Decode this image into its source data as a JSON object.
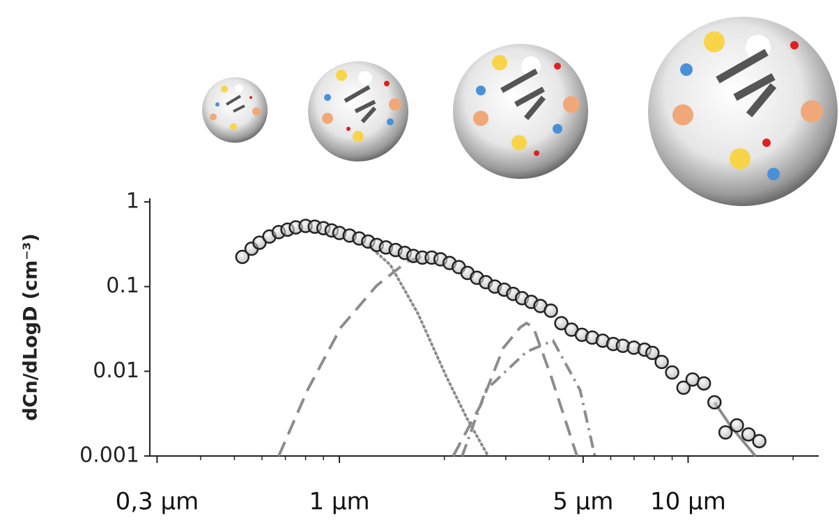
{
  "chart_data": {
    "type": "scatter",
    "y_label": "dCn/dLogD (cm⁻³)",
    "xscale": "log",
    "yscale": "log",
    "xlim": [
      0.286,
      23.7
    ],
    "ylim": [
      0.001,
      1
    ],
    "xticks": [
      {
        "value": 0.3,
        "label": "0,3 µm"
      },
      {
        "value": 1,
        "label": "1 µm"
      },
      {
        "value": 5,
        "label": "5 µm"
      },
      {
        "value": 10,
        "label": "10 µm"
      }
    ],
    "xminorticks": [
      0.4,
      0.5,
      0.6,
      0.7,
      0.8,
      0.9,
      2,
      3,
      4,
      6,
      7,
      8,
      9,
      20
    ],
    "yticks": [
      1,
      0.1,
      0.01,
      0.001
    ],
    "marker_color": "#222222",
    "x": [
      0.527,
      0.56,
      0.59,
      0.63,
      0.67,
      0.71,
      0.75,
      0.8,
      0.85,
      0.9,
      0.95,
      1.0,
      1.07,
      1.14,
      1.21,
      1.28,
      1.36,
      1.45,
      1.54,
      1.63,
      1.73,
      1.84,
      1.95,
      2.07,
      2.2,
      2.33,
      2.48,
      2.63,
      2.79,
      2.97,
      3.15,
      3.34,
      3.55,
      3.77,
      4.04,
      4.33,
      4.63,
      4.96,
      5.31,
      5.69,
      6.1,
      6.5,
      6.99,
      7.5,
      7.9,
      8.4,
      9.0,
      9.7,
      10.3,
      11.1,
      11.9,
      12.8,
      13.8,
      14.9,
      16.0
    ],
    "values": [
      0.224,
      0.28,
      0.33,
      0.39,
      0.44,
      0.47,
      0.5,
      0.52,
      0.51,
      0.49,
      0.46,
      0.43,
      0.4,
      0.37,
      0.34,
      0.31,
      0.29,
      0.27,
      0.25,
      0.23,
      0.22,
      0.22,
      0.21,
      0.19,
      0.17,
      0.145,
      0.127,
      0.113,
      0.1,
      0.092,
      0.082,
      0.073,
      0.066,
      0.059,
      0.052,
      0.037,
      0.031,
      0.027,
      0.025,
      0.023,
      0.021,
      0.02,
      0.019,
      0.018,
      0.0165,
      0.0129,
      0.0097,
      0.0064,
      0.008,
      0.0072,
      0.0043,
      0.0019,
      0.0023,
      0.0018,
      0.0015
    ],
    "fits": [
      {
        "line_style": "dotted",
        "color": "#8c8c8c",
        "x": [
          1.22,
          1.4,
          1.68,
          2.02,
          2.32,
          2.67
        ],
        "values": [
          0.3,
          0.18,
          0.048,
          0.0089,
          0.0028,
          0.001
        ]
      },
      {
        "line_style": "dashed",
        "color": "#8c8c8c",
        "x": [
          0.67,
          0.81,
          1.01,
          1.28,
          1.57,
          1.76
        ],
        "values": [
          0.001,
          0.006,
          0.033,
          0.103,
          0.2,
          0.23
        ]
      },
      {
        "line_style": "dashed",
        "color": "#8c8c8c",
        "x": [
          2.12,
          2.55,
          2.95,
          3.3,
          3.44,
          3.6,
          4.04,
          4.8
        ],
        "values": [
          0.001,
          0.0041,
          0.0188,
          0.033,
          0.037,
          0.033,
          0.0089,
          0.001
        ]
      },
      {
        "line_style": "dashdot",
        "color": "#8c8c8c",
        "x": [
          2.25,
          2.63,
          3.44,
          4.1,
          4.9,
          5.4
        ],
        "values": [
          0.001,
          0.006,
          0.017,
          0.023,
          0.006,
          0.001
        ]
      },
      {
        "line_style": "solid",
        "color": "#8c8c8c",
        "x": [
          11.9,
          13.3,
          15.6
        ],
        "values": [
          0.0043,
          0.0022,
          0.001
        ]
      }
    ]
  }
}
